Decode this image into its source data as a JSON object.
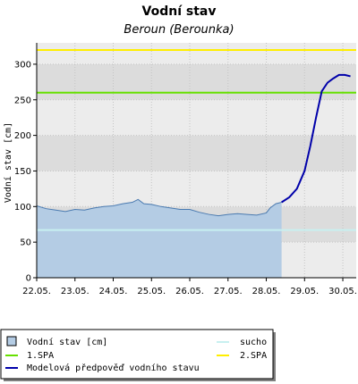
{
  "chart_data": {
    "type": "area",
    "title": "Vodní stav",
    "subtitle": "Beroun (Berounka)",
    "ylabel": "Vodní stav [cm]",
    "ylim": [
      0,
      330
    ],
    "y_ticks": [
      0,
      50,
      100,
      150,
      200,
      250,
      300
    ],
    "x_ticks": [
      "22.05.",
      "23.05.",
      "24.05.",
      "25.05.",
      "26.05.",
      "27.05.",
      "28.05.",
      "29.05.",
      "30.05."
    ],
    "xlim": [
      0.0,
      8.35
    ],
    "grid": true,
    "legend_placement": "bottom",
    "thresholds": [
      {
        "name": "sucho",
        "value": 67,
        "color": "#c8f0f0"
      },
      {
        "name": "1.SPA",
        "value": 260,
        "color": "#66e000"
      },
      {
        "name": "2.SPA",
        "value": 320,
        "color": "#ffee00"
      }
    ],
    "series": [
      {
        "name": "Vodní stav [cm]",
        "color": "#b4cce4",
        "line_color": "#4a7ab0",
        "x_unit": "days since 22.05.",
        "x": [
          0.0,
          0.25,
          0.5,
          0.75,
          1.0,
          1.25,
          1.5,
          1.75,
          2.0,
          2.25,
          2.5,
          2.65,
          2.8,
          3.0,
          3.25,
          3.5,
          3.75,
          4.0,
          4.25,
          4.5,
          4.75,
          5.0,
          5.25,
          5.5,
          5.75,
          6.0,
          6.1,
          6.25,
          6.4
        ],
        "values": [
          101,
          97,
          95,
          93,
          96,
          95,
          98,
          100,
          101,
          104,
          106,
          110,
          104,
          103,
          100,
          98,
          96,
          96,
          92,
          89,
          87,
          89,
          90,
          89,
          88,
          91,
          98,
          104,
          106
        ]
      },
      {
        "name": "Modelová předpověď vodního stavu",
        "color": "#0000aa",
        "x_unit": "days since 22.05.",
        "x": [
          6.4,
          6.6,
          6.8,
          7.0,
          7.15,
          7.3,
          7.45,
          7.6,
          7.75,
          7.9,
          8.05,
          8.2
        ],
        "values": [
          106,
          113,
          125,
          150,
          185,
          225,
          262,
          274,
          280,
          285,
          285,
          283
        ]
      }
    ],
    "legend": {
      "observed": "Vodní stav [cm]",
      "spa1": "1.SPA",
      "forecast": "Modelová předpověď vodního stavu",
      "dry": "sucho",
      "spa2": "2.SPA"
    }
  }
}
